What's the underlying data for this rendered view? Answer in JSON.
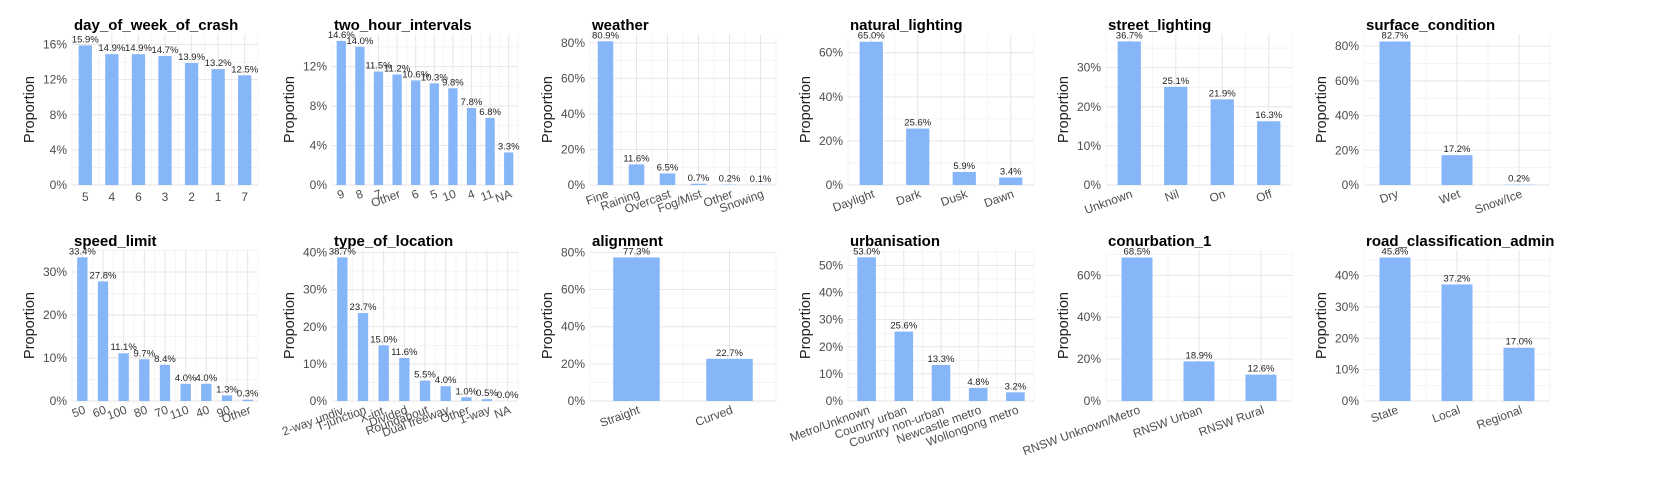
{
  "accent_color": "#86b6f8",
  "chart_data": [
    {
      "type": "bar",
      "title": "day_of_week_of_crash",
      "ylabel": "Proportion",
      "categories": [
        "5",
        "4",
        "6",
        "3",
        "2",
        "1",
        "7"
      ],
      "values": [
        15.9,
        14.9,
        14.9,
        14.7,
        13.9,
        13.2,
        12.5
      ],
      "labels": [
        "15.9%",
        "14.9%",
        "14.9%",
        "14.7%",
        "13.9%",
        "13.2%",
        "12.5%"
      ],
      "yticks": [
        0,
        4,
        8,
        12,
        16
      ],
      "ytick_labels": [
        "0%",
        "4%",
        "8%",
        "12%",
        "16%"
      ],
      "ylim": [
        0,
        17.2
      ],
      "rotate_x": false
    },
    {
      "type": "bar",
      "title": "two_hour_intervals",
      "ylabel": "Proportion",
      "categories": [
        "9",
        "8",
        "7",
        "Other",
        "6",
        "5",
        "10",
        "4",
        "11",
        "NA"
      ],
      "values": [
        14.6,
        14.0,
        11.5,
        11.2,
        10.6,
        10.3,
        9.8,
        7.8,
        6.8,
        3.3
      ],
      "labels": [
        "14.6%",
        "14.0%",
        "11.5%",
        "11.2%",
        "10.6%",
        "10.3%",
        "9.8%",
        "7.8%",
        "6.8%",
        "3.3%"
      ],
      "yticks": [
        0,
        4,
        8,
        12
      ],
      "ytick_labels": [
        "0%",
        "4%",
        "8%",
        "12%"
      ],
      "ylim": [
        0,
        15.3
      ],
      "rotate_x": true
    },
    {
      "type": "bar",
      "title": "weather",
      "ylabel": "Proportion",
      "categories": [
        "Fine",
        "Raining",
        "Overcast",
        "Fog/Mist",
        "Other",
        "Snowing"
      ],
      "values": [
        80.9,
        11.6,
        6.5,
        0.7,
        0.2,
        0.1
      ],
      "labels": [
        "80.9%",
        "11.6%",
        "6.5%",
        "0.7%",
        "0.2%",
        "0.1%"
      ],
      "yticks": [
        0,
        20,
        40,
        60,
        80
      ],
      "ytick_labels": [
        "0%",
        "20%",
        "40%",
        "60%",
        "80%"
      ],
      "ylim": [
        0,
        85
      ],
      "rotate_x": true
    },
    {
      "type": "bar",
      "title": "natural_lighting",
      "ylabel": "Proportion",
      "categories": [
        "Daylight",
        "Dark",
        "Dusk",
        "Dawn"
      ],
      "values": [
        65.0,
        25.6,
        5.9,
        3.4
      ],
      "labels": [
        "65.0%",
        "25.6%",
        "5.9%",
        "3.4%"
      ],
      "yticks": [
        0,
        20,
        40,
        60
      ],
      "ytick_labels": [
        "0%",
        "20%",
        "40%",
        "60%"
      ],
      "ylim": [
        0,
        68.5
      ],
      "rotate_x": true
    },
    {
      "type": "bar",
      "title": "street_lighting",
      "ylabel": "Proportion",
      "categories": [
        "Unknown",
        "Nil",
        "On",
        "Off"
      ],
      "values": [
        36.7,
        25.1,
        21.9,
        16.3
      ],
      "labels": [
        "36.7%",
        "25.1%",
        "21.9%",
        "16.3%"
      ],
      "yticks": [
        0,
        10,
        20,
        30
      ],
      "ytick_labels": [
        "0%",
        "10%",
        "20%",
        "30%"
      ],
      "ylim": [
        0,
        38.6
      ],
      "rotate_x": true
    },
    {
      "type": "bar",
      "title": "surface_condition",
      "ylabel": "Proportion",
      "categories": [
        "Dry",
        "Wet",
        "Snow/Ice"
      ],
      "values": [
        82.7,
        17.2,
        0.2
      ],
      "labels": [
        "82.7%",
        "17.2%",
        "0.2%"
      ],
      "yticks": [
        0,
        20,
        40,
        60,
        80
      ],
      "ytick_labels": [
        "0%",
        "20%",
        "40%",
        "60%",
        "80%"
      ],
      "ylim": [
        0,
        87
      ],
      "rotate_x": true
    },
    {
      "type": "bar",
      "title": "speed_limit",
      "ylabel": "Proportion",
      "categories": [
        "50",
        "60",
        "100",
        "80",
        "70",
        "110",
        "40",
        "90",
        "Other"
      ],
      "values": [
        33.4,
        27.8,
        11.1,
        9.7,
        8.4,
        4.0,
        4.0,
        1.3,
        0.3
      ],
      "labels": [
        "33.4%",
        "27.8%",
        "11.1%",
        "9.7%",
        "8.4%",
        "4.0%",
        "4.0%",
        "1.3%",
        "0.3%"
      ],
      "yticks": [
        0,
        10,
        20,
        30
      ],
      "ytick_labels": [
        "0%",
        "10%",
        "20%",
        "30%"
      ],
      "ylim": [
        0,
        35.1
      ],
      "rotate_x": true
    },
    {
      "type": "bar",
      "title": "type_of_location",
      "ylabel": "Proportion",
      "categories": [
        "2-way undiv.",
        "T-junction",
        "X-int.",
        "Divided",
        "Roundabout",
        "Dual freeway",
        "Other",
        "1-way",
        "NA"
      ],
      "values": [
        38.7,
        23.7,
        15.0,
        11.6,
        5.5,
        4.0,
        1.0,
        0.5,
        0.0
      ],
      "labels": [
        "38.7%",
        "23.7%",
        "15.0%",
        "11.6%",
        "5.5%",
        "4.0%",
        "1.0%",
        "0.5%",
        "0.0%"
      ],
      "yticks": [
        0,
        10,
        20,
        30,
        40
      ],
      "ytick_labels": [
        "0%",
        "10%",
        "20%",
        "30%",
        "40%"
      ],
      "ylim": [
        0,
        40.7
      ],
      "rotate_x": true
    },
    {
      "type": "bar",
      "title": "alignment",
      "ylabel": "Proportion",
      "categories": [
        "Straight",
        "Curved"
      ],
      "values": [
        77.3,
        22.7
      ],
      "labels": [
        "77.3%",
        "22.7%"
      ],
      "yticks": [
        0,
        20,
        40,
        60,
        80
      ],
      "ytick_labels": [
        "0%",
        "20%",
        "40%",
        "60%",
        "80%"
      ],
      "ylim": [
        0,
        81.3
      ],
      "rotate_x": true
    },
    {
      "type": "bar",
      "title": "urbanisation",
      "ylabel": "Proportion",
      "categories": [
        "Metro/Unknown",
        "Country urban",
        "Country non-urban",
        "Newcastle metro",
        "Wollongong metro"
      ],
      "values": [
        53.0,
        25.6,
        13.3,
        4.8,
        3.2
      ],
      "labels": [
        "53.0%",
        "25.6%",
        "13.3%",
        "4.8%",
        "3.2%"
      ],
      "yticks": [
        0,
        10,
        20,
        30,
        40,
        50
      ],
      "ytick_labels": [
        "0%",
        "10%",
        "20%",
        "30%",
        "40%",
        "50%"
      ],
      "ylim": [
        0,
        55.7
      ],
      "rotate_x": true
    },
    {
      "type": "bar",
      "title": "conurbation_1",
      "ylabel": "Proportion",
      "categories": [
        "RNSW Unknown/Metro",
        "RNSW Urban",
        "RNSW Rural"
      ],
      "values": [
        68.5,
        18.9,
        12.6
      ],
      "labels": [
        "68.5%",
        "18.9%",
        "12.6%"
      ],
      "yticks": [
        0,
        20,
        40,
        60
      ],
      "ytick_labels": [
        "0%",
        "20%",
        "40%",
        "60%"
      ],
      "ylim": [
        0,
        72.1
      ],
      "rotate_x": true
    },
    {
      "type": "bar",
      "title": "road_classification_admin",
      "ylabel": "Proportion",
      "categories": [
        "State",
        "Local",
        "Regional"
      ],
      "values": [
        45.8,
        37.2,
        17.0
      ],
      "labels": [
        "45.8%",
        "37.2%",
        "17.0%"
      ],
      "yticks": [
        0,
        10,
        20,
        30,
        40
      ],
      "ytick_labels": [
        "0%",
        "10%",
        "20%",
        "30%",
        "40%"
      ],
      "ylim": [
        0,
        48.2
      ],
      "rotate_x": true
    }
  ]
}
